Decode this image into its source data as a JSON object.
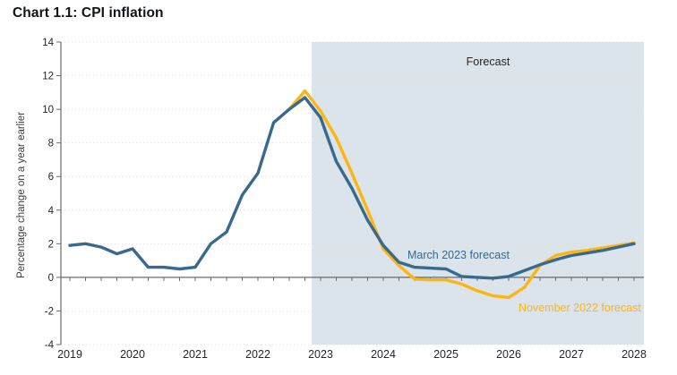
{
  "chart_data": {
    "type": "line",
    "title": "Chart 1.1: CPI inflation",
    "ylabel": "Percentage change on a year earlier",
    "xlabel": "",
    "ylim": [
      -4,
      14
    ],
    "yticks": [
      14,
      12,
      10,
      8,
      6,
      4,
      2,
      0,
      -2,
      -4
    ],
    "xticks": [
      "2019",
      "2020",
      "2021",
      "2022",
      "2023",
      "2024",
      "2025",
      "2026",
      "2027",
      "2028"
    ],
    "x_unit": "quarterly",
    "grid": "horizontal-dotted",
    "legend_position": "inline-labels-on-chart",
    "colors": {
      "axis": "#6b6b6b",
      "grid": "#dcdcdc",
      "tick_text": "#262626",
      "axis_title_text": "#3d3d3d",
      "forecast_region_fill": "#dbe3eb",
      "march_forecast": "#39698c",
      "november_forecast": "#fcb614"
    },
    "forecast_region": {
      "label": "Forecast",
      "start": 2022.86
    },
    "series": [
      {
        "name": "November 2022 forecast",
        "color": "#fcb614",
        "x_start": 2022.5,
        "x_step": 0.25,
        "values": [
          10.0,
          11.1,
          9.9,
          8.3,
          6.2,
          4.0,
          1.7,
          0.7,
          -0.1,
          -0.15,
          -0.15,
          -0.4,
          -0.8,
          -1.1,
          -1.2,
          -0.6,
          0.7,
          1.3,
          1.5,
          1.6,
          1.75,
          1.9,
          2.05
        ]
      },
      {
        "name": "March 2023 forecast",
        "color": "#39698c",
        "x_start": 2019.0,
        "x_step": 0.25,
        "values": [
          1.9,
          2.0,
          1.8,
          1.4,
          1.7,
          0.6,
          0.6,
          0.5,
          0.6,
          2.0,
          2.7,
          4.9,
          6.2,
          9.2,
          10.0,
          10.7,
          9.5,
          6.9,
          5.3,
          3.4,
          1.9,
          0.9,
          0.6,
          0.55,
          0.5,
          0.05,
          0.0,
          -0.05,
          0.05,
          0.4,
          0.75,
          1.05,
          1.3,
          1.45,
          1.6,
          1.8,
          2.0
        ]
      }
    ]
  }
}
